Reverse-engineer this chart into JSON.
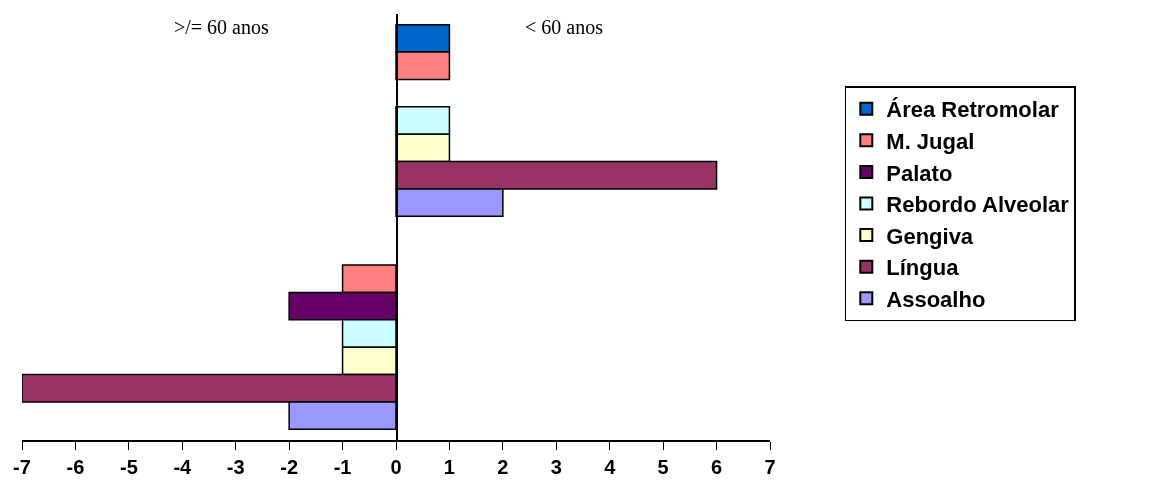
{
  "chart_data": {
    "type": "bar",
    "orientation": "horizontal",
    "categories": [
      null,
      null
    ],
    "series": [
      {
        "name": "Área Retromolar",
        "color": "#0066cc",
        "values": [
          1,
          null
        ]
      },
      {
        "name": "M. Jugal",
        "color": "#ff8080",
        "values": [
          1,
          -1
        ]
      },
      {
        "name": "Palato",
        "color": "#660066",
        "values": [
          null,
          -2
        ]
      },
      {
        "name": "Rebordo Alveolar",
        "color": "#ccffff",
        "values": [
          1,
          -1
        ]
      },
      {
        "name": "Gengiva",
        "color": "#ffffcc",
        "values": [
          1,
          -1
        ]
      },
      {
        "name": "Língua",
        "color": "#993366",
        "values": [
          6,
          -7
        ]
      },
      {
        "name": "Assoalho",
        "color": "#9999ff",
        "values": [
          2,
          -2
        ]
      }
    ],
    "xlim": [
      -7,
      7
    ],
    "xticks": [
      -7,
      -6,
      -5,
      -4,
      -3,
      -2,
      -1,
      0,
      1,
      2,
      3,
      4,
      5,
      6,
      7
    ],
    "legend": "right",
    "annotations": [
      ">/= 60 anos",
      "< 60 anos"
    ]
  }
}
